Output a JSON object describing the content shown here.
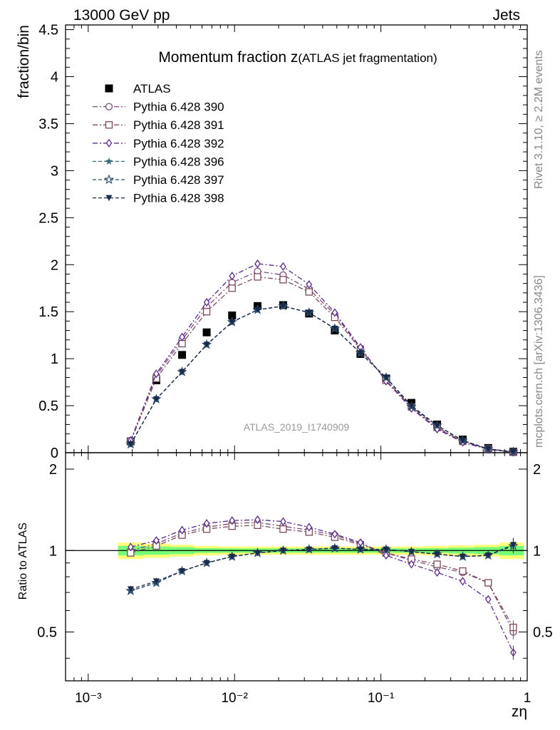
{
  "header": {
    "left": "13000 GeV pp",
    "right": "Jets"
  },
  "title_main": "Momentum fraction ",
  "title_symbol": "z",
  "title_sub": "(ATLAS jet fragmentation)",
  "analysis_label": "ATLAS_2019_I1740909",
  "side_label_top": "Rivet 3.1.10, ≥ 2.2M events",
  "side_label_bottom": "mcplots.cern.ch [arXiv:1306.3436]",
  "colors": {
    "data": "#000000",
    "p390": "#7b4a7a",
    "p391": "#7a4a5a",
    "p392": "#5a2a8a",
    "p396": "#3a6a7a",
    "p397": "#2a4a6a",
    "p398": "#1a2a4a",
    "band_yellow": "#ffff77",
    "band_green": "#77ff77"
  },
  "chart_data": [
    {
      "type": "line",
      "xlabel": "zη",
      "ylabel": "fraction/bin",
      "xscale": "log",
      "xlim": [
        0.0007,
        1.0
      ],
      "ylim": [
        0,
        4.55
      ],
      "y_ticks": [
        "0",
        "0.5",
        "1",
        "1.5",
        "2",
        "2.5",
        "3",
        "3.5",
        "4",
        "4.5"
      ],
      "legend_position": "top-left",
      "x": [
        0.00195,
        0.00292,
        0.00438,
        0.00645,
        0.00962,
        0.01436,
        0.02148,
        0.0323,
        0.0484,
        0.0725,
        0.1085,
        0.1617,
        0.2422,
        0.3626,
        0.5413,
        0.803
      ],
      "series": [
        {
          "name": "ATLAS",
          "marker": "filled-square",
          "values": [
            0.12,
            0.77,
            1.04,
            1.28,
            1.46,
            1.56,
            1.57,
            1.48,
            1.3,
            1.05,
            0.79,
            0.53,
            0.3,
            0.14,
            0.05,
            0.01
          ]
        },
        {
          "name": "Pythia 6.428 390",
          "marker": "open-circle",
          "values": [
            0.13,
            0.82,
            1.2,
            1.55,
            1.81,
            1.93,
            1.89,
            1.74,
            1.47,
            1.11,
            0.77,
            0.48,
            0.26,
            0.12,
            0.04,
            0.005
          ]
        },
        {
          "name": "Pythia 6.428 391",
          "marker": "open-square",
          "values": [
            0.12,
            0.79,
            1.16,
            1.5,
            1.75,
            1.87,
            1.84,
            1.71,
            1.44,
            1.1,
            0.77,
            0.49,
            0.27,
            0.12,
            0.04,
            0.005
          ]
        },
        {
          "name": "Pythia 6.428 392",
          "marker": "open-diamond",
          "values": [
            0.13,
            0.84,
            1.23,
            1.6,
            1.88,
            2.01,
            1.98,
            1.79,
            1.49,
            1.12,
            0.76,
            0.47,
            0.25,
            0.11,
            0.035,
            0.004
          ]
        },
        {
          "name": "Pythia 6.428 396",
          "marker": "filled-star",
          "values": [
            0.09,
            0.57,
            0.86,
            1.15,
            1.39,
            1.52,
            1.56,
            1.49,
            1.32,
            1.06,
            0.8,
            0.49,
            0.29,
            0.13,
            0.04,
            0.01
          ]
        },
        {
          "name": "Pythia 6.428 397",
          "marker": "open-star",
          "values": [
            0.09,
            0.57,
            0.86,
            1.15,
            1.39,
            1.52,
            1.56,
            1.49,
            1.32,
            1.06,
            0.8,
            0.49,
            0.29,
            0.13,
            0.04,
            0.01
          ]
        },
        {
          "name": "Pythia 6.428 398",
          "marker": "filled-triangle-down",
          "values": [
            0.09,
            0.57,
            0.86,
            1.15,
            1.39,
            1.52,
            1.56,
            1.49,
            1.32,
            1.06,
            0.8,
            0.5,
            0.29,
            0.13,
            0.04,
            0.01
          ]
        }
      ]
    },
    {
      "type": "line",
      "xlabel": "zη",
      "ylabel": "Ratio to ATLAS",
      "xscale": "log",
      "xlim": [
        0.0007,
        1.0
      ],
      "ylim": [
        0.33,
        2.3
      ],
      "y_ticks": [
        "0.5",
        "1",
        "2"
      ],
      "x_ticks": [
        "10⁻³",
        "10⁻²",
        "10⁻¹",
        "1"
      ],
      "reference_line": 1,
      "band_edges": [
        0.0016,
        0.0024,
        0.0036,
        0.0053,
        0.0078,
        0.0116,
        0.0173,
        0.0258,
        0.0387,
        0.058,
        0.087,
        0.13,
        0.195,
        0.29,
        0.435,
        0.65,
        0.95
      ],
      "band_yellow_halfwidth": [
        0.07,
        0.06,
        0.05,
        0.04,
        0.035,
        0.035,
        0.035,
        0.035,
        0.035,
        0.035,
        0.035,
        0.035,
        0.04,
        0.045,
        0.05,
        0.07
      ],
      "band_green_halfwidth": [
        0.04,
        0.035,
        0.03,
        0.02,
        0.018,
        0.018,
        0.018,
        0.018,
        0.018,
        0.018,
        0.018,
        0.018,
        0.02,
        0.025,
        0.03,
        0.04
      ],
      "x": [
        0.00195,
        0.00292,
        0.00438,
        0.00645,
        0.00962,
        0.01436,
        0.02148,
        0.0323,
        0.0484,
        0.0725,
        0.1085,
        0.1617,
        0.2422,
        0.3626,
        0.5413,
        0.803
      ],
      "series": [
        {
          "name": "Pythia 6.428 390",
          "values": [
            1.0,
            1.06,
            1.16,
            1.22,
            1.26,
            1.27,
            1.23,
            1.19,
            1.14,
            1.06,
            0.98,
            0.92,
            0.87,
            0.83,
            0.76,
            0.5
          ]
        },
        {
          "name": "Pythia 6.428 391",
          "values": [
            0.98,
            1.04,
            1.14,
            1.2,
            1.23,
            1.24,
            1.2,
            1.17,
            1.12,
            1.05,
            0.98,
            0.93,
            0.89,
            0.84,
            0.76,
            0.52
          ]
        },
        {
          "name": "Pythia 6.428 392",
          "values": [
            1.03,
            1.09,
            1.19,
            1.26,
            1.29,
            1.3,
            1.28,
            1.22,
            1.15,
            1.07,
            0.96,
            0.89,
            0.83,
            0.77,
            0.66,
            0.42
          ]
        },
        {
          "name": "Pythia 6.428 396",
          "values": [
            0.71,
            0.76,
            0.84,
            0.9,
            0.95,
            0.98,
            1.0,
            1.01,
            1.02,
            1.01,
            1.01,
            0.99,
            0.97,
            0.95,
            0.96,
            1.05
          ]
        },
        {
          "name": "Pythia 6.428 397",
          "values": [
            0.71,
            0.76,
            0.84,
            0.9,
            0.95,
            0.98,
            1.0,
            1.01,
            1.02,
            1.01,
            1.01,
            0.99,
            0.97,
            0.95,
            0.96,
            1.04
          ]
        },
        {
          "name": "Pythia 6.428 398",
          "values": [
            0.72,
            0.77,
            0.84,
            0.9,
            0.95,
            0.98,
            1.0,
            1.01,
            1.02,
            1.01,
            1.01,
            0.99,
            0.97,
            0.95,
            0.96,
            1.05
          ]
        }
      ]
    }
  ]
}
